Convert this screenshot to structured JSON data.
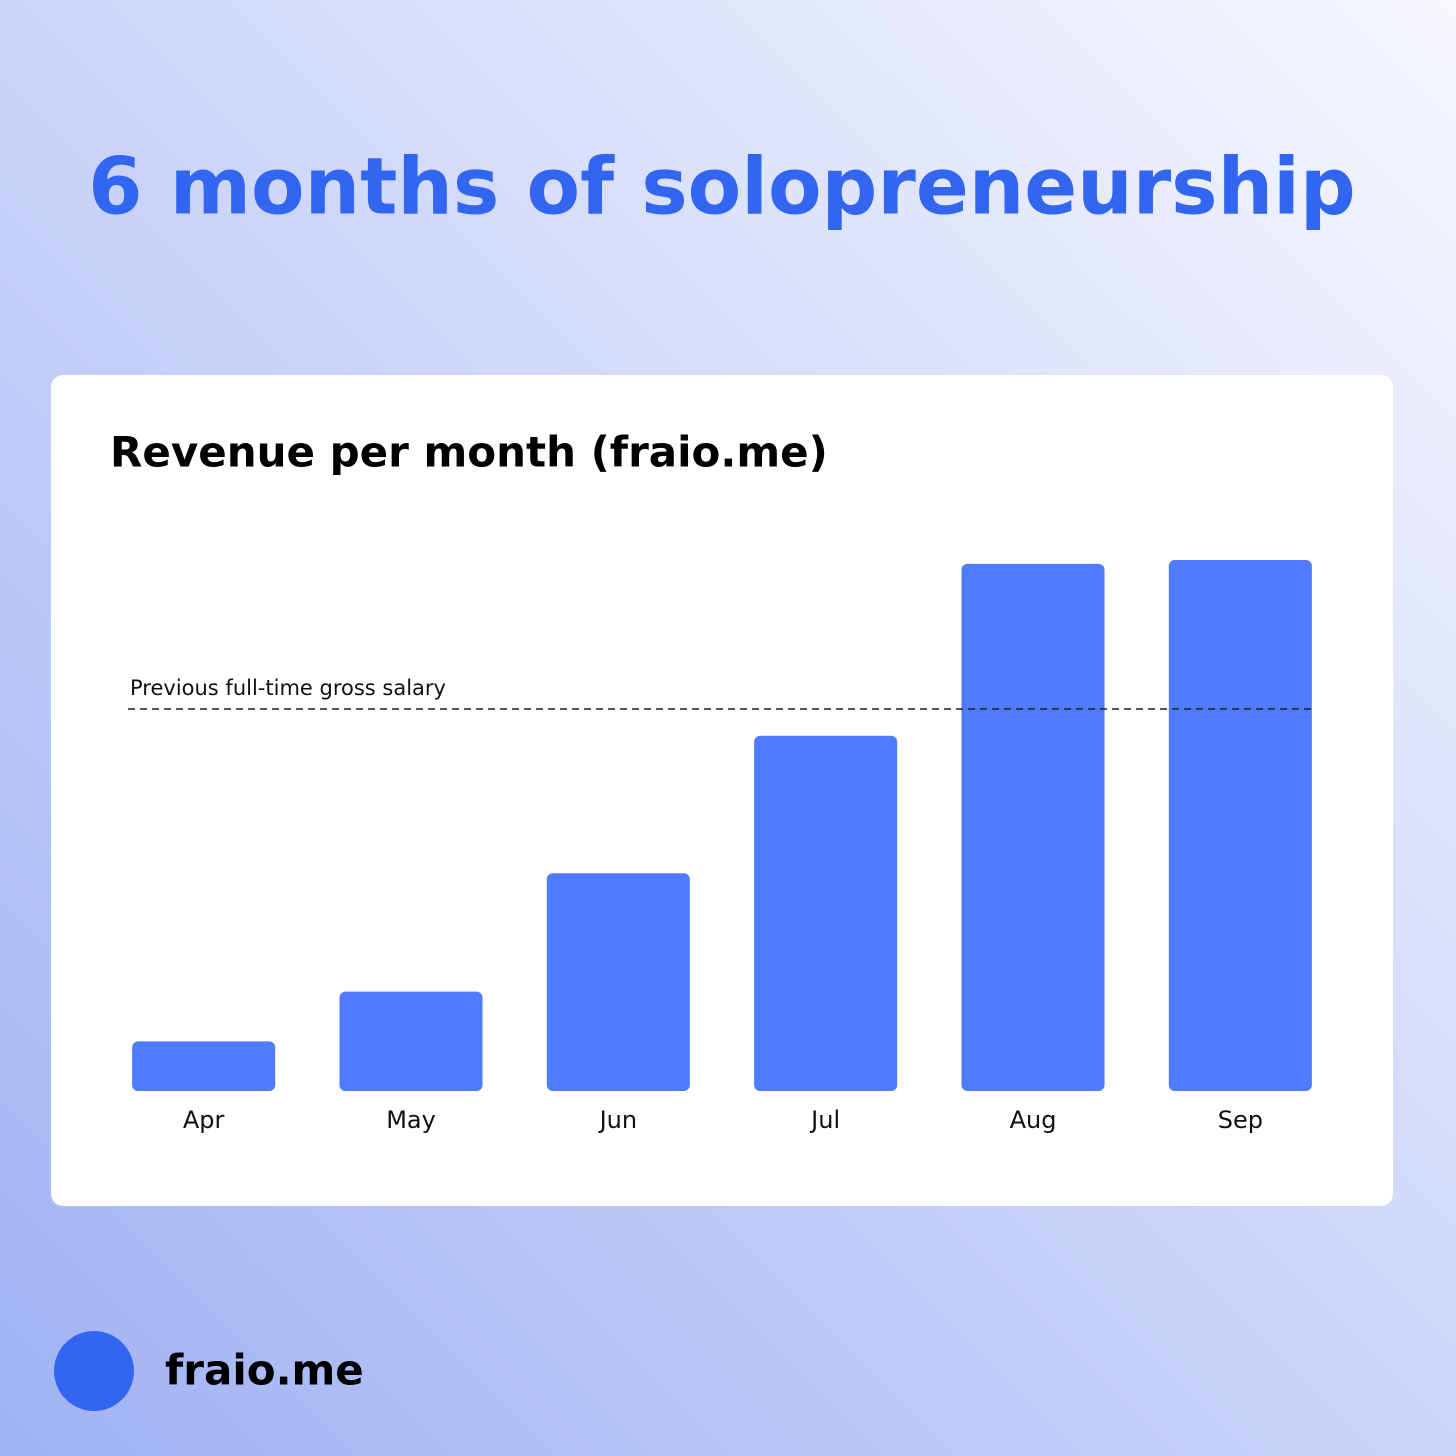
{
  "page_title": "6 months of solopreneurship",
  "footer": {
    "brand": "fraio.me"
  },
  "chart_data": {
    "type": "bar",
    "title": "Revenue per month (fraio.me)",
    "categories": [
      "Apr",
      "May",
      "Jun",
      "Jul",
      "Aug",
      "Sep"
    ],
    "values": [
      13,
      26,
      57,
      93,
      138,
      139
    ],
    "color": "#4f7bff",
    "ylim": [
      0,
      139
    ],
    "reference_line": {
      "label": "Previous full-time gross salary",
      "value": 100
    }
  }
}
